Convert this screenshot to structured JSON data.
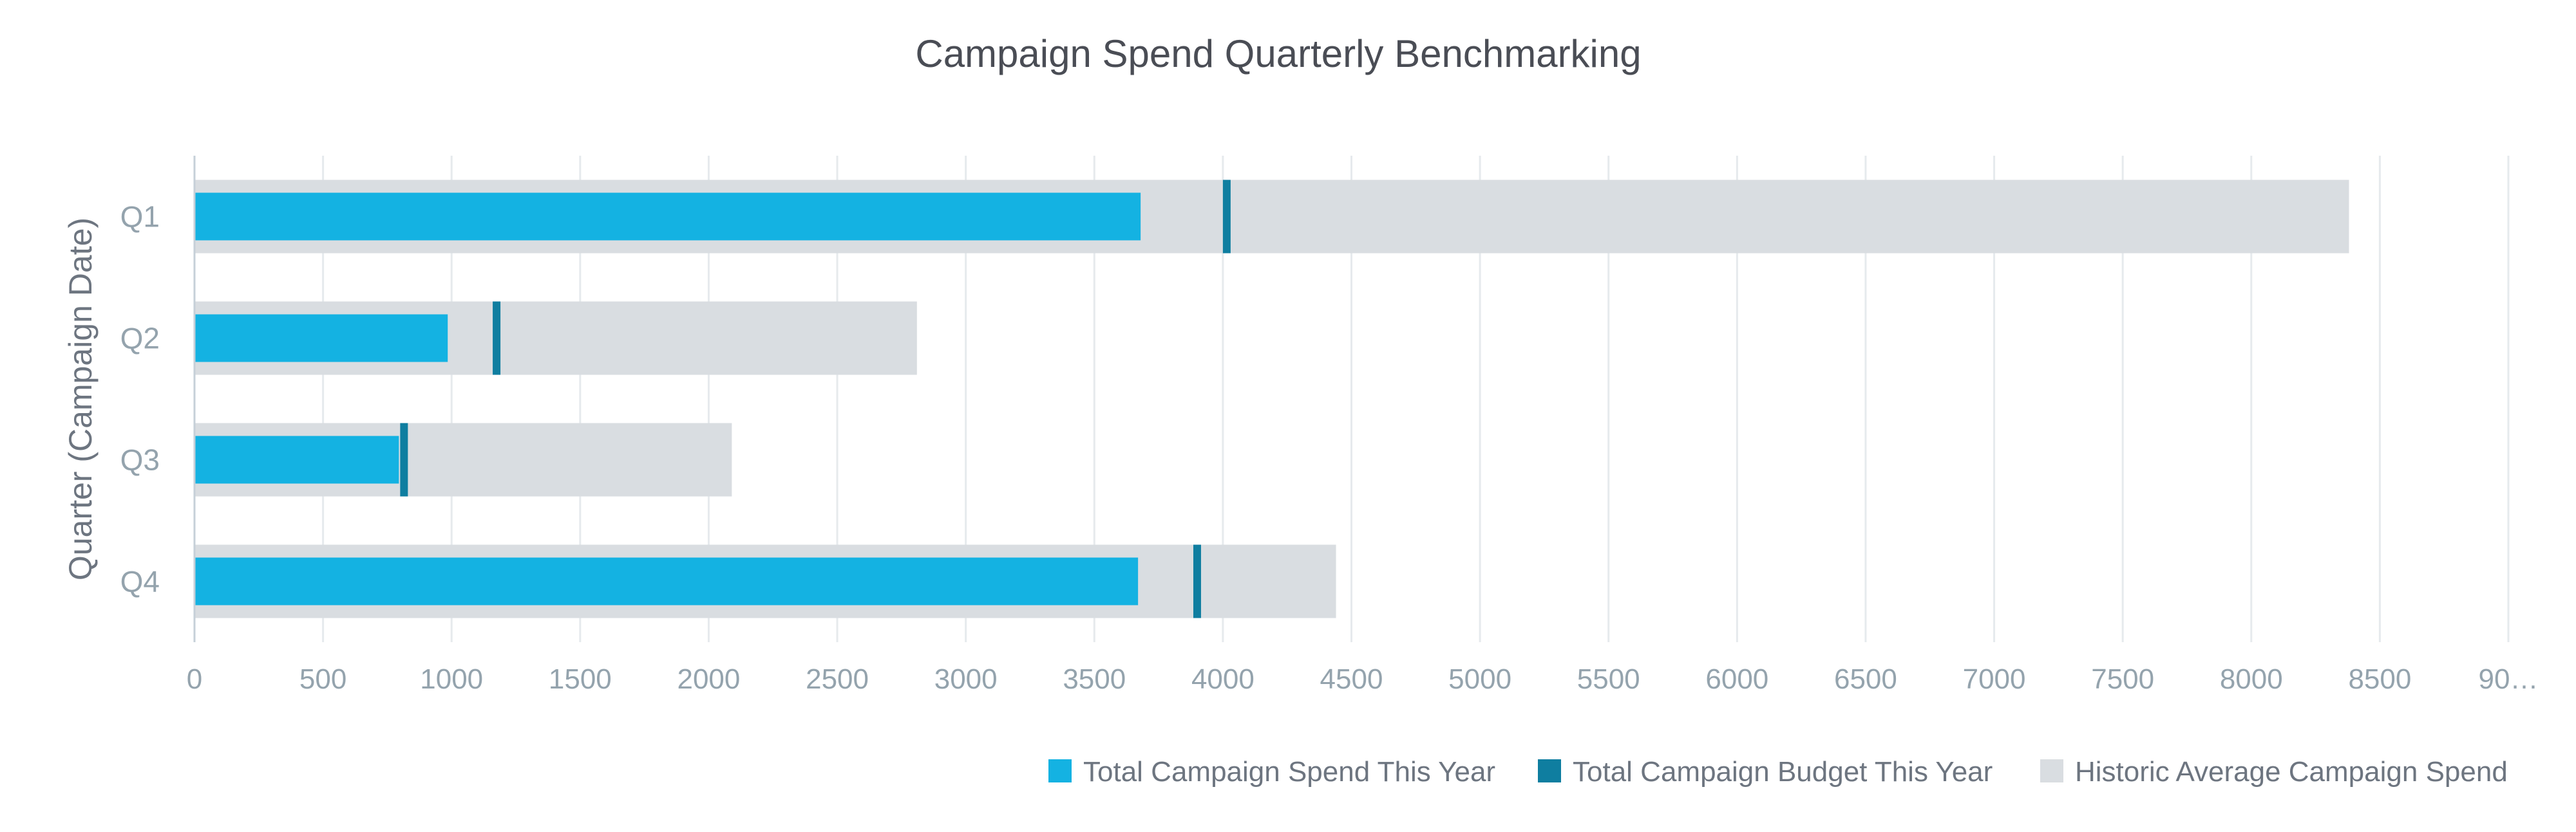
{
  "chart_data": {
    "type": "bar",
    "subtype": "bullet",
    "orientation": "horizontal",
    "title": "Campaign Spend Quarterly Benchmarking",
    "ylabel": "Quarter (Campaign Date)",
    "xlabel": "",
    "categories": [
      "Q1",
      "Q2",
      "Q3",
      "Q4"
    ],
    "series": [
      {
        "name": "Total Campaign Spend This Year",
        "role": "primary",
        "color": "#14b2e2",
        "values": [
          3680,
          985,
          795,
          3670
        ]
      },
      {
        "name": "Total Campaign Budget This Year",
        "role": "target",
        "color": "#0f7ea0",
        "values": [
          4015,
          1175,
          815,
          3900
        ]
      },
      {
        "name": "Historic Average Campaign Spend",
        "role": "range",
        "color": "#d9dde1",
        "values": [
          8380,
          2810,
          2090,
          4440
        ]
      }
    ],
    "xlim": [
      0,
      9000
    ],
    "xticks": [
      "0",
      "500",
      "1000",
      "1500",
      "2000",
      "2500",
      "3000",
      "3500",
      "4000",
      "4500",
      "5000",
      "5500",
      "6000",
      "6500",
      "7000",
      "7500",
      "8000",
      "8500",
      "90…"
    ],
    "xtick_values": [
      0,
      500,
      1000,
      1500,
      2000,
      2500,
      3000,
      3500,
      4000,
      4500,
      5000,
      5500,
      6000,
      6500,
      7000,
      7500,
      8000,
      8500,
      9000
    ],
    "grid": true,
    "legend": "bottom-right"
  }
}
